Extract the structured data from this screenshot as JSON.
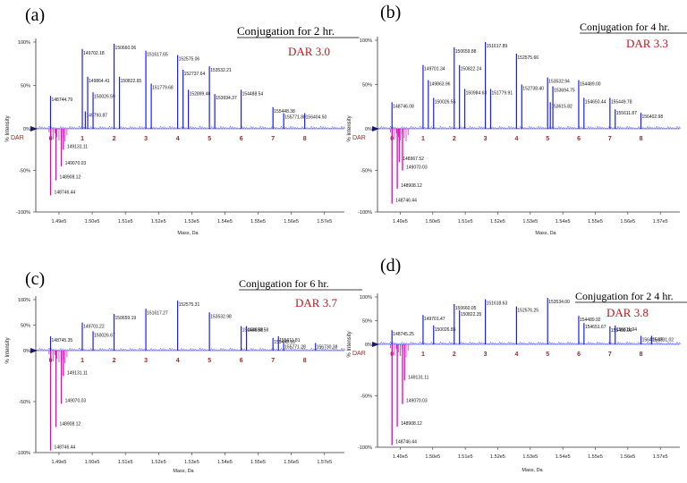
{
  "colors": {
    "positive_trace": "#1a1aff",
    "negative_trace": "#e600c8",
    "dar_text": "#c0181d",
    "axis": "#333333",
    "dar_tag": "#9a2b2b"
  },
  "chart_data": [
    {
      "type": "spectrum",
      "panel_label": "(a)",
      "title": "Conjugation for 2 hr.",
      "dar": "DAR 3.0",
      "xlabel": "Mass, Da",
      "ylabel": "% Intensity",
      "xlim": [
        148300,
        157600
      ],
      "xticks": [
        "1.49e5",
        "1.50e5",
        "1.51e5",
        "1.52e5",
        "1.53e5",
        "1.54e5",
        "1.55e5",
        "1.56e5",
        "1.57e5"
      ],
      "yticks": [
        "100%",
        "50%",
        "0%",
        "-50%",
        "-100%"
      ],
      "dar_axis_label": "DAR",
      "dar_numbers": [
        "0",
        "1",
        "2",
        "3",
        "4",
        "5",
        "6",
        "7",
        "8"
      ],
      "positive_peaks": [
        {
          "mass": 148744.79,
          "intensity": 38,
          "label": "148744.79"
        },
        {
          "mass": 149702.18,
          "intensity": 92,
          "label": "149702.18"
        },
        {
          "mass": 149793.87,
          "intensity": 20,
          "label": "149793.87"
        },
        {
          "mass": 149864.41,
          "intensity": 60,
          "label": "149864.41"
        },
        {
          "mass": 150026.59,
          "intensity": 42,
          "label": "150026.59"
        },
        {
          "mass": 150660.06,
          "intensity": 98,
          "label": "150660.06"
        },
        {
          "mass": 150822.65,
          "intensity": 60,
          "label": "150822.65"
        },
        {
          "mass": 151617.65,
          "intensity": 90,
          "label": "151617.65"
        },
        {
          "mass": 151779.68,
          "intensity": 52,
          "label": "151779.68"
        },
        {
          "mass": 152575.06,
          "intensity": 85,
          "label": "152575.06"
        },
        {
          "mass": 152737.64,
          "intensity": 68,
          "label": "152737.64"
        },
        {
          "mass": 152899.46,
          "intensity": 45,
          "label": "152899.46"
        },
        {
          "mass": 153532.21,
          "intensity": 72,
          "label": "153532.21"
        },
        {
          "mass": 153694.37,
          "intensity": 40,
          "label": "153694.37"
        },
        {
          "mass": 154488.54,
          "intensity": 45,
          "label": "154488.54"
        },
        {
          "mass": 155448.38,
          "intensity": 25,
          "label": "155448.38"
        },
        {
          "mass": 155771.8,
          "intensity": 18,
          "label": "155771.80"
        },
        {
          "mass": 156404.5,
          "intensity": 18,
          "label": "156404.50"
        }
      ],
      "negative_peaks": [
        {
          "mass": 148746.44,
          "intensity": -80,
          "label": "148746.44"
        },
        {
          "mass": 148908.12,
          "intensity": -62,
          "label": "148908.12"
        },
        {
          "mass": 149070.03,
          "intensity": -45,
          "label": "149070.03"
        },
        {
          "mass": 149131.11,
          "intensity": -25,
          "label": "149131.11"
        }
      ]
    },
    {
      "type": "spectrum",
      "panel_label": "(b)",
      "title": "Conjugation  for 4 hr.",
      "dar": "DAR 3.3",
      "xlabel": "Mass, Da",
      "ylabel": "% Intensity",
      "xlim": [
        148300,
        157600
      ],
      "xticks": [
        "1.49e5",
        "1.50e5",
        "1.51e5",
        "1.52e5",
        "1.53e5",
        "1.54e5",
        "1.55e5",
        "1.56e5",
        "1.57e5"
      ],
      "yticks": [
        "100%",
        "50%",
        "0%",
        "-50%",
        "-100%"
      ],
      "dar_axis_label": "DAR",
      "dar_numbers": [
        "0",
        "1",
        "2",
        "3",
        "4",
        "5",
        "6",
        "7",
        "8"
      ],
      "positive_peaks": [
        {
          "mass": 148746.08,
          "intensity": 30,
          "label": "148746.08"
        },
        {
          "mass": 149701.34,
          "intensity": 72,
          "label": "149701.34"
        },
        {
          "mass": 149863.96,
          "intensity": 55,
          "label": "149863.96"
        },
        {
          "mass": 150026.55,
          "intensity": 35,
          "label": "150026.55"
        },
        {
          "mass": 150659.88,
          "intensity": 92,
          "label": "150659.88"
        },
        {
          "mass": 150822.24,
          "intensity": 72,
          "label": "150822.24"
        },
        {
          "mass": 150984.63,
          "intensity": 45,
          "label": "150984.63"
        },
        {
          "mass": 151617.89,
          "intensity": 98,
          "label": "151617.89"
        },
        {
          "mass": 151779.91,
          "intensity": 45,
          "label": "151779.91"
        },
        {
          "mass": 152575.66,
          "intensity": 85,
          "label": "152575.66"
        },
        {
          "mass": 152738.4,
          "intensity": 50,
          "label": "152738.40"
        },
        {
          "mass": 153532.94,
          "intensity": 58,
          "label": "153532.94"
        },
        {
          "mass": 153615.82,
          "intensity": 30,
          "label": "153615.82"
        },
        {
          "mass": 153694.75,
          "intensity": 48,
          "label": "153694.75"
        },
        {
          "mass": 154489.0,
          "intensity": 55,
          "label": "154489.00"
        },
        {
          "mass": 154650.44,
          "intensity": 35,
          "label": "154650.44"
        },
        {
          "mass": 155449.78,
          "intensity": 35,
          "label": "155449.78"
        },
        {
          "mass": 155611.87,
          "intensity": 22,
          "label": "155611.87"
        },
        {
          "mass": 156402.98,
          "intensity": 18,
          "label": "156402.98"
        }
      ],
      "negative_peaks": [
        {
          "mass": 148746.44,
          "intensity": -90,
          "label": "148746.44"
        },
        {
          "mass": 148908.12,
          "intensity": -72,
          "label": "148908.12"
        },
        {
          "mass": 149070.03,
          "intensity": -50,
          "label": "149070.03"
        },
        {
          "mass": 148967.52,
          "intensity": -40,
          "label": "148967.52"
        }
      ]
    },
    {
      "type": "spectrum",
      "panel_label": "(c)",
      "title": "Conjugation  for  6 hr.",
      "dar": "DAR 3.7",
      "xlabel": "Mass, Da",
      "ylabel": "% Intensity",
      "xlim": [
        148300,
        157600
      ],
      "xticks": [
        "1.49e5",
        "1.50e5",
        "1.51e5",
        "1.52e5",
        "1.53e5",
        "1.54e5",
        "1.55e5",
        "1.56e5",
        "1.57e5",
        "1.58e5"
      ],
      "yticks": [
        "100%",
        "50%",
        "0%",
        "-50%",
        "-100%"
      ],
      "dar_axis_label": "",
      "dar_numbers": [
        "0",
        "1",
        "2",
        "3",
        "4",
        "5",
        "6",
        "7",
        "8"
      ],
      "positive_peaks": [
        {
          "mass": 148745.35,
          "intensity": 28,
          "label": "148745.35"
        },
        {
          "mass": 149701.22,
          "intensity": 55,
          "label": "149701.22"
        },
        {
          "mass": 150026.67,
          "intensity": 38,
          "label": "150026.67"
        },
        {
          "mass": 150659.19,
          "intensity": 72,
          "label": "150659.19"
        },
        {
          "mass": 151617.27,
          "intensity": 82,
          "label": "151617.27"
        },
        {
          "mass": 152575.31,
          "intensity": 98,
          "label": "152575.31"
        },
        {
          "mass": 153532.98,
          "intensity": 75,
          "label": "153532.98"
        },
        {
          "mass": 154488.98,
          "intensity": 48,
          "label": "154488.98"
        },
        {
          "mass": 154650.58,
          "intensity": 48,
          "label": "154650.58"
        },
        {
          "mass": 155448.16,
          "intensity": 25,
          "label": "155448.16"
        },
        {
          "mass": 155611.81,
          "intensity": 28,
          "label": "155611.81"
        },
        {
          "mass": 155771.28,
          "intensity": 15,
          "label": "155771.28"
        },
        {
          "mass": 156730.38,
          "intensity": 15,
          "label": "156730.38"
        }
      ],
      "negative_peaks": [
        {
          "mass": 148746.44,
          "intensity": -98,
          "label": "148746.44"
        },
        {
          "mass": 148908.12,
          "intensity": -75,
          "label": "148908.12"
        },
        {
          "mass": 149070.03,
          "intensity": -52,
          "label": "149070.03"
        },
        {
          "mass": 149131.11,
          "intensity": -25,
          "label": "149131.11"
        }
      ]
    },
    {
      "type": "spectrum",
      "panel_label": "(d)",
      "title": "Conjugation for 2 4 hr.",
      "dar": "DAR 3.8",
      "xlabel": "Mass, Da",
      "ylabel": "% Intensity",
      "xlim": [
        148300,
        157600
      ],
      "xticks": [
        "1.49e5",
        "1.50e5",
        "1.51e5",
        "1.52e5",
        "1.53e5",
        "1.54e5",
        "1.55e5",
        "1.56e5",
        "1.57e5"
      ],
      "yticks": [
        "100%",
        "50%",
        "0%",
        "-50%",
        "-100%"
      ],
      "dar_axis_label": "DAR",
      "dar_numbers": [
        "0",
        "1",
        "2",
        "3",
        "4",
        "5",
        "6",
        "7",
        "8"
      ],
      "positive_peaks": [
        {
          "mass": 148745.25,
          "intensity": 30,
          "label": "148745.25"
        },
        {
          "mass": 149701.47,
          "intensity": 62,
          "label": "149701.47"
        },
        {
          "mass": 150026.85,
          "intensity": 40,
          "label": "150026.85"
        },
        {
          "mass": 150660.05,
          "intensity": 85,
          "label": "150660.05"
        },
        {
          "mass": 150822.35,
          "intensity": 72,
          "label": "150822.35"
        },
        {
          "mass": 151618.63,
          "intensity": 95,
          "label": "151618.63"
        },
        {
          "mass": 152576.25,
          "intensity": 80,
          "label": "152576.25"
        },
        {
          "mass": 153534.0,
          "intensity": 98,
          "label": "153534.00"
        },
        {
          "mass": 154489.92,
          "intensity": 60,
          "label": "154489.92"
        },
        {
          "mass": 154651.67,
          "intensity": 45,
          "label": "154651.67"
        },
        {
          "mass": 155450.09,
          "intensity": 38,
          "label": "155450.09"
        },
        {
          "mass": 155611.94,
          "intensity": 40,
          "label": "155611.94"
        },
        {
          "mass": 156405.08,
          "intensity": 18,
          "label": "156405.08"
        },
        {
          "mass": 156731.02,
          "intensity": 18,
          "label": "156731.02"
        }
      ],
      "negative_peaks": [
        {
          "mass": 148746.44,
          "intensity": -98,
          "label": "148746.44"
        },
        {
          "mass": 148908.12,
          "intensity": -80,
          "label": "148908.12"
        },
        {
          "mass": 149070.03,
          "intensity": -58,
          "label": "149070.03"
        },
        {
          "mass": 149131.11,
          "intensity": -35,
          "label": "149131.11"
        }
      ]
    }
  ]
}
